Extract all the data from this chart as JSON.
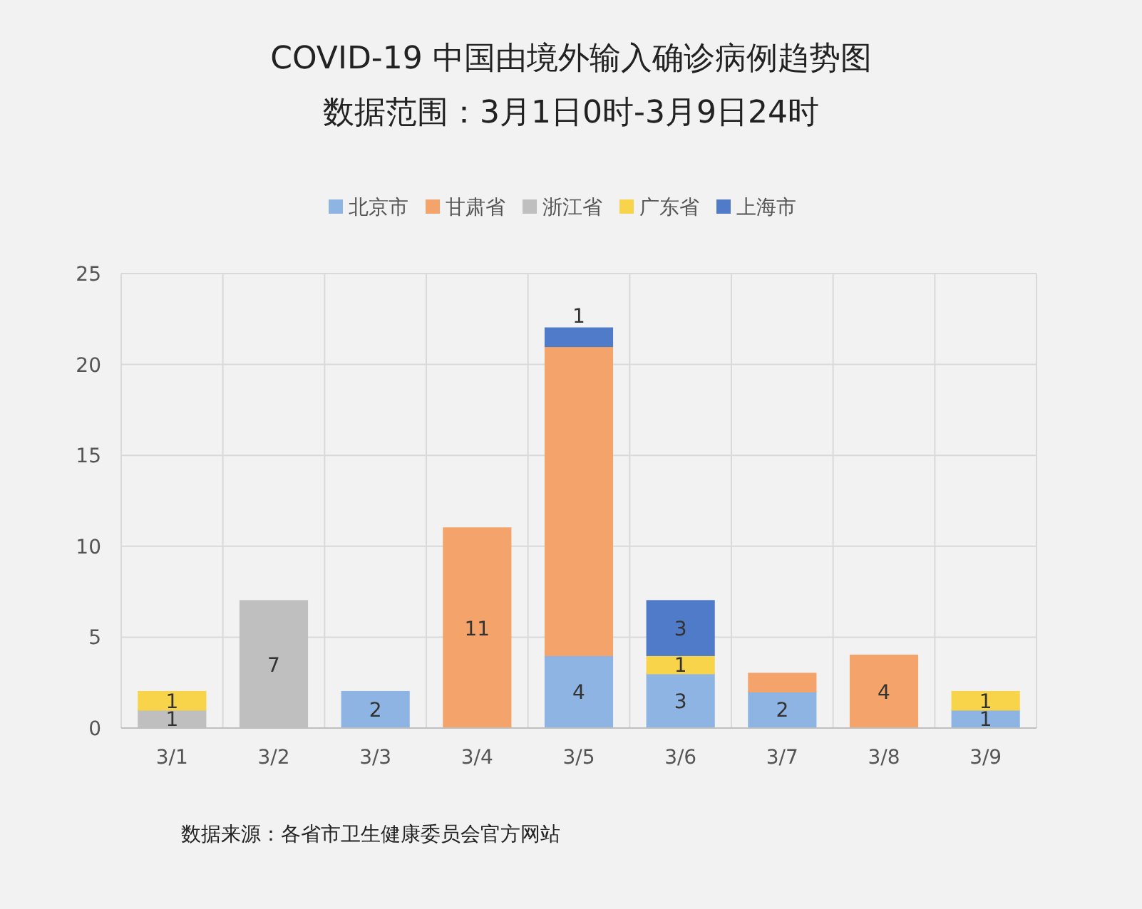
{
  "chart_data": {
    "type": "bar",
    "title": "COVID-19 中国由境外输入确诊病例趋势图",
    "subtitle": "数据范围：3月1日0时-3月9日24时",
    "categories": [
      "3/1",
      "3/2",
      "3/3",
      "3/4",
      "3/5",
      "3/6",
      "3/7",
      "3/8",
      "3/9"
    ],
    "stacked": true,
    "ylim": [
      0,
      25
    ],
    "yticks": [
      0,
      5,
      10,
      15,
      20,
      25
    ],
    "grid": true,
    "legend": "top",
    "series": [
      {
        "name": "北京市",
        "color": "#8db4e2",
        "values": [
          null,
          null,
          2,
          null,
          4,
          3,
          2,
          null,
          1
        ],
        "value_labels": [
          null,
          null,
          "2",
          null,
          "4",
          "3",
          "2",
          null,
          "1"
        ]
      },
      {
        "name": "甘肃省",
        "color": "#f4a36a",
        "values": [
          null,
          null,
          null,
          11,
          17,
          null,
          1,
          4,
          null
        ],
        "value_labels": [
          null,
          null,
          null,
          "11",
          null,
          null,
          null,
          "4",
          null
        ]
      },
      {
        "name": "浙江省",
        "color": "#bfbfbf",
        "values": [
          1,
          7,
          null,
          null,
          null,
          null,
          null,
          null,
          null
        ],
        "value_labels": [
          "1",
          "7",
          null,
          null,
          null,
          null,
          null,
          null,
          null
        ]
      },
      {
        "name": "广东省",
        "color": "#f8d44a",
        "values": [
          1,
          null,
          null,
          null,
          null,
          1,
          null,
          null,
          1
        ],
        "value_labels": [
          "1",
          null,
          null,
          null,
          null,
          "1",
          null,
          null,
          "1"
        ]
      },
      {
        "name": "上海市",
        "color": "#4f7bc8",
        "values": [
          null,
          null,
          null,
          null,
          1,
          3,
          null,
          null,
          null
        ],
        "value_labels": [
          null,
          null,
          null,
          null,
          "1",
          "3",
          null,
          null,
          null
        ]
      }
    ],
    "annotations": [
      "数据来源：各省市卫生健康委员会官方网站"
    ]
  }
}
